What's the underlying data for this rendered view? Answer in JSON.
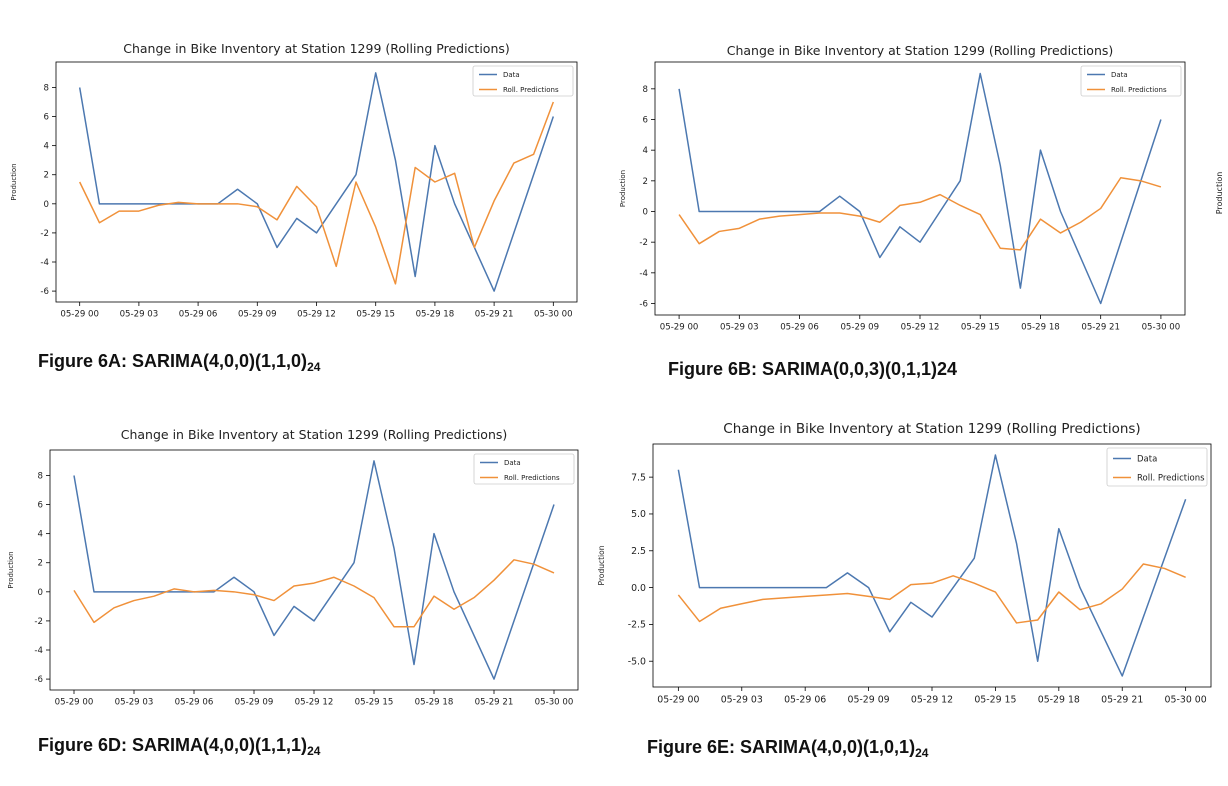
{
  "colors": {
    "data": "#4c78b0",
    "pred": "#f0913a",
    "axis": "#000000"
  },
  "edge_fragment": {
    "ylabel": "Production"
  },
  "captions": [
    {
      "main": "Figure 6A: SARIMA(4,0,0)(1,1,0)",
      "sub": "24"
    },
    {
      "main": "Figure 6B: SARIMA(0,0,3)(0,1,1)24",
      "sub": ""
    },
    {
      "main": "Figure 6D: SARIMA(4,0,0)(1,1,1)",
      "sub": "24"
    },
    {
      "main": "Figure 6E: SARIMA(4,0,0)(1,0,1)",
      "sub": "24"
    }
  ],
  "chart_data": [
    {
      "type": "line",
      "title": "Change in Bike Inventory at Station 1299 (Rolling Predictions)",
      "xlabel": "",
      "ylabel": "Production",
      "x_ticks": [
        "05-29 00",
        "05-29 03",
        "05-29 06",
        "05-29 09",
        "05-29 12",
        "05-29 15",
        "05-29 18",
        "05-29 21",
        "05-30 00"
      ],
      "y_ticks": [
        "-6",
        "-4",
        "-2",
        "0",
        "2",
        "4",
        "6",
        "8"
      ],
      "y_tick_values": [
        -6,
        -4,
        -2,
        0,
        2,
        4,
        6,
        8
      ],
      "ylim": [
        -6.75,
        9.75
      ],
      "xlim": [
        -1.2,
        25.2
      ],
      "legend": "top-right",
      "series": [
        {
          "name": "Data",
          "color": "data",
          "values": [
            8,
            0,
            0,
            0,
            0,
            0,
            0,
            0,
            1,
            0,
            -3,
            -1,
            -2,
            0,
            2,
            9,
            3,
            -5,
            4,
            0,
            -3,
            -6,
            -2,
            2,
            6
          ]
        },
        {
          "name": "Roll. Predictions",
          "color": "pred",
          "values": [
            1.5,
            -1.3,
            -0.5,
            -0.5,
            -0.1,
            0.1,
            0.0,
            0.0,
            0.0,
            -0.2,
            -1.1,
            1.2,
            -0.2,
            -4.3,
            1.5,
            -1.6,
            -5.5,
            2.5,
            1.5,
            2.1,
            -3.0,
            0.2,
            2.8,
            3.4,
            7.0
          ]
        }
      ]
    },
    {
      "type": "line",
      "title": "Change in Bike Inventory at Station 1299 (Rolling Predictions)",
      "xlabel": "",
      "ylabel": "Production",
      "x_ticks": [
        "05-29 00",
        "05-29 03",
        "05-29 06",
        "05-29 09",
        "05-29 12",
        "05-29 15",
        "05-29 18",
        "05-29 21",
        "05-30 00"
      ],
      "y_ticks": [
        "-6",
        "-4",
        "-2",
        "0",
        "2",
        "4",
        "6",
        "8"
      ],
      "y_tick_values": [
        -6,
        -4,
        -2,
        0,
        2,
        4,
        6,
        8
      ],
      "ylim": [
        -6.75,
        9.75
      ],
      "xlim": [
        -1.2,
        25.2
      ],
      "legend": "top-right",
      "series": [
        {
          "name": "Data",
          "color": "data",
          "values": [
            8,
            0,
            0,
            0,
            0,
            0,
            0,
            0,
            1,
            0,
            -3,
            -1,
            -2,
            0,
            2,
            9,
            3,
            -5,
            4,
            0,
            -3,
            -6,
            -2,
            2,
            6
          ]
        },
        {
          "name": "Roll. Predictions",
          "color": "pred",
          "values": [
            -0.2,
            -2.1,
            -1.3,
            -1.1,
            -0.5,
            -0.3,
            -0.2,
            -0.1,
            -0.1,
            -0.3,
            -0.7,
            0.4,
            0.6,
            1.1,
            0.4,
            -0.2,
            -2.4,
            -2.5,
            -0.5,
            -1.4,
            -0.7,
            0.2,
            2.2,
            2.0,
            1.6
          ]
        }
      ]
    },
    {
      "type": "line",
      "title": "Change in Bike Inventory at Station 1299 (Rolling Predictions)",
      "xlabel": "",
      "ylabel": "Production",
      "x_ticks": [
        "05-29 00",
        "05-29 03",
        "05-29 06",
        "05-29 09",
        "05-29 12",
        "05-29 15",
        "05-29 18",
        "05-29 21",
        "05-30 00"
      ],
      "y_ticks": [
        "-6",
        "-4",
        "-2",
        "0",
        "2",
        "4",
        "6",
        "8"
      ],
      "y_tick_values": [
        -6,
        -4,
        -2,
        0,
        2,
        4,
        6,
        8
      ],
      "ylim": [
        -6.75,
        9.75
      ],
      "xlim": [
        -1.2,
        25.2
      ],
      "legend": "top-right",
      "series": [
        {
          "name": "Data",
          "color": "data",
          "values": [
            8,
            0,
            0,
            0,
            0,
            0,
            0,
            0,
            1,
            0,
            -3,
            -1,
            -2,
            0,
            2,
            9,
            3,
            -5,
            4,
            0,
            -3,
            -6,
            -2,
            2,
            6
          ]
        },
        {
          "name": "Roll. Predictions",
          "color": "pred",
          "values": [
            0.1,
            -2.1,
            -1.1,
            -0.6,
            -0.3,
            0.2,
            0.0,
            0.1,
            0.0,
            -0.2,
            -0.6,
            0.4,
            0.6,
            1.0,
            0.4,
            -0.4,
            -2.4,
            -2.4,
            -0.3,
            -1.2,
            -0.4,
            0.8,
            2.2,
            1.9,
            1.3
          ]
        }
      ]
    },
    {
      "type": "line",
      "title": "Change in Bike Inventory at Station 1299 (Rolling Predictions)",
      "xlabel": "",
      "ylabel": "Production",
      "x_ticks": [
        "05-29 00",
        "05-29 03",
        "05-29 06",
        "05-29 09",
        "05-29 12",
        "05-29 15",
        "05-29 18",
        "05-29 21",
        "05-30 00"
      ],
      "y_ticks": [
        "-5.0",
        "-2.5",
        "0.0",
        "2.5",
        "5.0",
        "7.5"
      ],
      "y_tick_values": [
        -5.0,
        -2.5,
        0.0,
        2.5,
        5.0,
        7.5
      ],
      "ylim": [
        -6.75,
        9.75
      ],
      "xlim": [
        -1.2,
        25.2
      ],
      "legend": "top-right",
      "series": [
        {
          "name": "Data",
          "color": "data",
          "values": [
            8,
            0,
            0,
            0,
            0,
            0,
            0,
            0,
            1,
            0,
            -3,
            -1,
            -2,
            0,
            2,
            9,
            3,
            -5,
            4,
            0,
            -3,
            -6,
            -2,
            2,
            6
          ]
        },
        {
          "name": "Roll. Predictions",
          "color": "pred",
          "values": [
            -0.5,
            -2.3,
            -1.4,
            -1.1,
            -0.8,
            -0.7,
            -0.6,
            -0.5,
            -0.4,
            -0.6,
            -0.8,
            0.2,
            0.3,
            0.8,
            0.3,
            -0.3,
            -2.4,
            -2.2,
            -0.3,
            -1.5,
            -1.1,
            -0.1,
            1.6,
            1.3,
            0.7
          ]
        }
      ]
    }
  ]
}
